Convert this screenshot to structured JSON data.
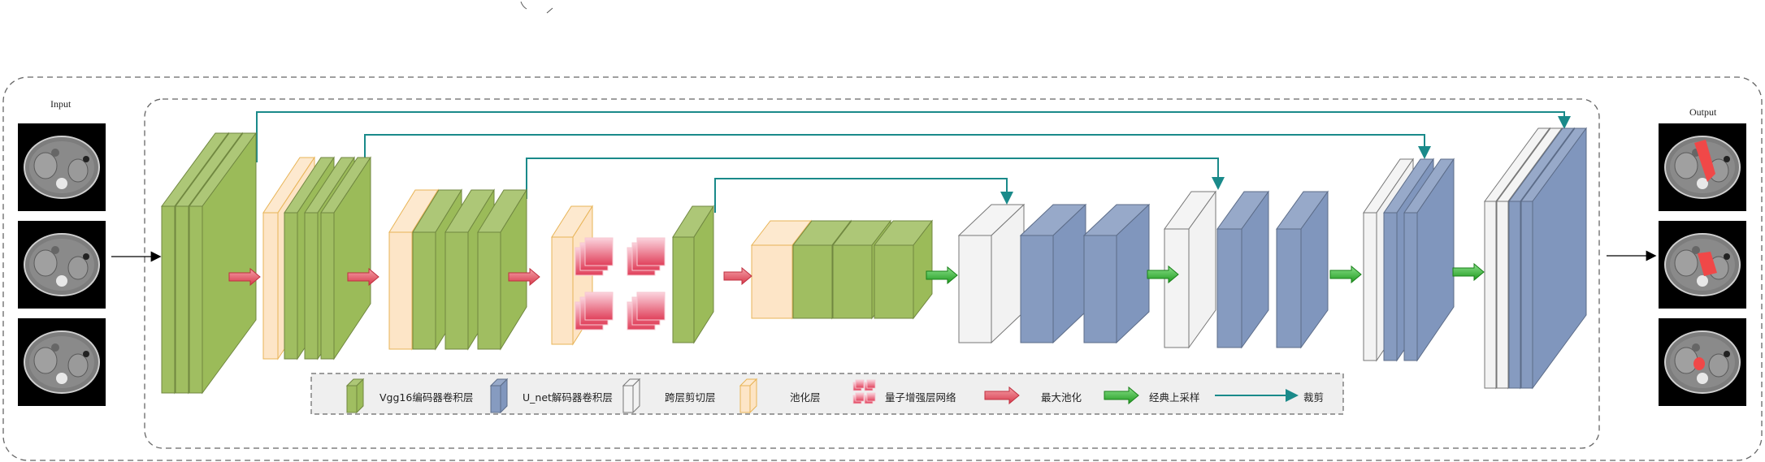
{
  "labels": {
    "input": "Input",
    "output": "Output"
  },
  "legend": [
    {
      "icon": "green-block-icon",
      "label": "Vgg16编码器卷积层"
    },
    {
      "icon": "blue-block-icon",
      "label": "U_net解码器卷积层"
    },
    {
      "icon": "white-block-icon",
      "label": "跨层剪切层"
    },
    {
      "icon": "orange-block-icon",
      "label": "池化层"
    },
    {
      "icon": "quantum-block-icon",
      "label": "量子增强层网络"
    },
    {
      "icon": "red-arrow-icon",
      "label": "最大池化"
    },
    {
      "icon": "green-arrow-icon",
      "label": "经典上采样"
    },
    {
      "icon": "teal-line-icon",
      "label": "裁剪"
    }
  ],
  "colors": {
    "encoder": "#9bbb59",
    "decoder": "#8096bd",
    "skip": "#f2f2f2",
    "pool": "#fde4c4",
    "quantum": "#e0405a",
    "maxpool_arrow": "#e86470",
    "upsample_arrow": "#2aa82a",
    "crop_line": "#1a8a8a"
  }
}
